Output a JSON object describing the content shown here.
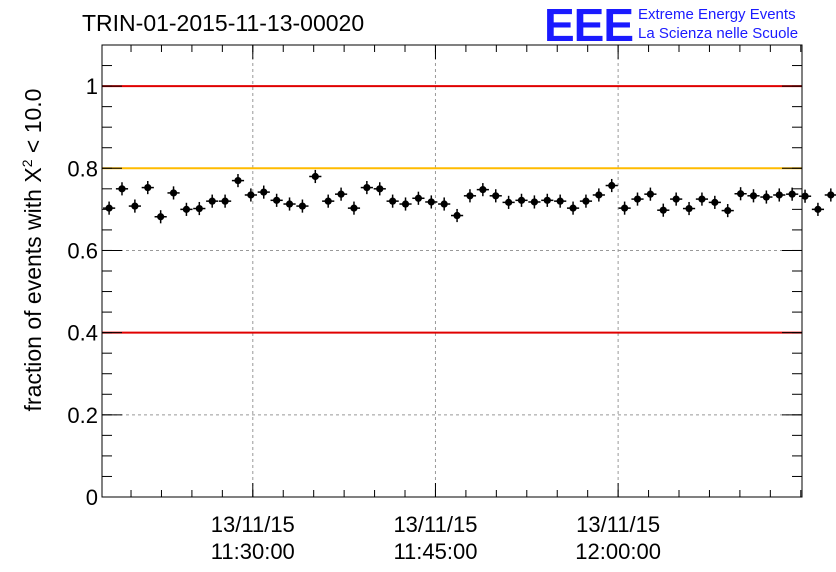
{
  "header": {
    "title": "TRIN-01-2015-11-13-00020"
  },
  "logo": {
    "mark": "EEE",
    "line1": "Extreme Energy Events",
    "line2": "La Scienza nelle Scuole"
  },
  "colors": {
    "limit_red": "#e00000",
    "limit_yellow": "#ffbb00",
    "marker": "#000000",
    "logo_blue": "#1a1aff"
  },
  "chart_data": {
    "type": "scatter",
    "title": "TRIN-01-2015-11-13-00020",
    "ylabel_prefix": "fraction of events with",
    "ylabel_symbol": "X",
    "ylabel_sup": "2",
    "ylabel_suffix": "< 10.0",
    "xlabel": "",
    "ylim": [
      0,
      1.1
    ],
    "xlim": [
      "2015-11-13 11:17:37",
      "2015-11-13 12:15:06"
    ],
    "grid": true,
    "yticks": [
      {
        "value": 0,
        "label": "0"
      },
      {
        "value": 0.2,
        "label": "0.2"
      },
      {
        "value": 0.4,
        "label": "0.4"
      },
      {
        "value": 0.6,
        "label": "0.6"
      },
      {
        "value": 0.8,
        "label": "0.8"
      },
      {
        "value": 1,
        "label": "1"
      }
    ],
    "xticks": [
      {
        "time": "2015-11-13 11:30:00",
        "date_label": "13/11/15",
        "time_label": "11:30:00"
      },
      {
        "time": "2015-11-13 11:45:00",
        "date_label": "13/11/15",
        "time_label": "11:45:00"
      },
      {
        "time": "2015-11-13 12:00:00",
        "date_label": "13/11/15",
        "time_label": "12:00:00"
      }
    ],
    "reference_lines": [
      {
        "y": 1.0,
        "color": "#e00000"
      },
      {
        "y": 0.8,
        "color": "#ffbb00"
      },
      {
        "y": 0.4,
        "color": "#e00000"
      }
    ],
    "series": [
      {
        "x_start": "2015-11-13 11:18:12",
        "x_step_seconds": 63.5,
        "x_error_seconds": 30,
        "y_error": 0.016,
        "values": [
          0.703,
          0.75,
          0.708,
          0.753,
          0.682,
          0.74,
          0.7,
          0.702,
          0.72,
          0.72,
          0.77,
          0.735,
          0.742,
          0.722,
          0.713,
          0.708,
          0.78,
          0.72,
          0.737,
          0.703,
          0.753,
          0.75,
          0.72,
          0.713,
          0.727,
          0.718,
          0.713,
          0.685,
          0.733,
          0.748,
          0.733,
          0.717,
          0.722,
          0.718,
          0.722,
          0.72,
          0.703,
          0.72,
          0.735,
          0.758,
          0.703,
          0.725,
          0.737,
          0.698,
          0.725,
          0.702,
          0.725,
          0.717,
          0.697,
          0.738,
          0.733,
          0.73,
          0.735,
          0.737,
          0.732,
          0.7,
          0.735
        ]
      }
    ]
  }
}
